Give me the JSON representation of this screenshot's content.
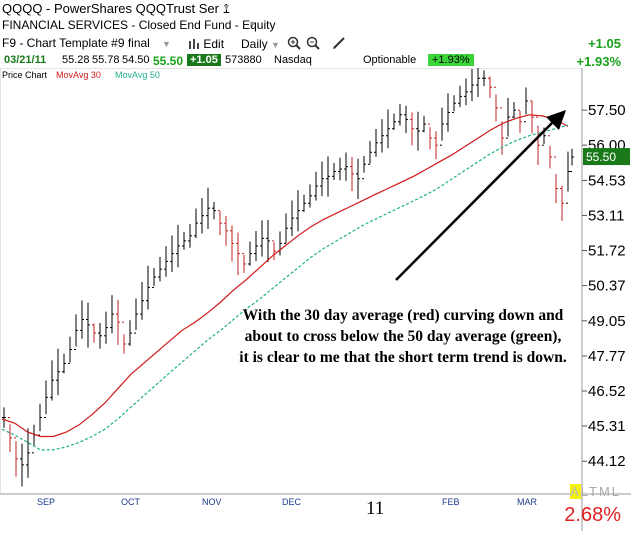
{
  "header": {
    "symbol": "QQQQ - PowerShares QQQTrust Ser 1",
    "sector": "FINANCIAL SERVICES - Closed End Fund - Equity",
    "template": "F9 - Chart Template #9 final",
    "edit_label": "Edit",
    "period_label": "Daily",
    "change": "+1.05",
    "change_pct": "+1.93%"
  },
  "quote": {
    "date": "03/21/11",
    "open": "55.28",
    "high": "55.78",
    "low": "54.50",
    "last": "55.50",
    "change": "+1.05",
    "volume": "573880",
    "exchange": "Nasdaq",
    "optionable": "Optionable",
    "change_pct": "+1.93%"
  },
  "legend": {
    "price": "Price Chart",
    "ma30": "MovAvg 30",
    "ma50": "MovAvg 50"
  },
  "colors": {
    "price_bar": "#000000",
    "down_bar": "#c02020",
    "ma30": "#d01818",
    "ma50": "#20b08a",
    "positive": "#1aa01a",
    "last_box": "#1a7a1a"
  },
  "chart_data": {
    "type": "line",
    "y_ticks": [
      "57.50",
      "56.00",
      "54.53",
      "53.11",
      "51.72",
      "50.37",
      "49.05",
      "47.77",
      "46.52",
      "45.31",
      "44.12"
    ],
    "x_labels": [
      "SEP",
      "OCT",
      "NOV",
      "DEC",
      "11",
      "FEB",
      "MAR"
    ],
    "last_price": "55.50",
    "ylim": [
      43.5,
      59.0
    ],
    "log_scale": true,
    "series": [
      {
        "name": "MovAvg 30",
        "values": [
          45.55,
          45.4,
          45.1,
          44.95,
          44.95,
          45.1,
          45.35,
          45.7,
          46.1,
          46.6,
          47.1,
          47.5,
          47.9,
          48.3,
          48.7,
          49.0,
          49.35,
          49.75,
          50.2,
          50.6,
          51.05,
          51.5,
          51.9,
          52.3,
          52.65,
          52.95,
          53.2,
          53.45,
          53.7,
          53.95,
          54.2,
          54.45,
          54.7,
          55.0,
          55.3,
          55.6,
          55.95,
          56.3,
          56.65,
          56.95,
          57.15,
          57.3,
          57.25,
          57.1,
          56.8
        ]
      },
      {
        "name": "MovAvg 50",
        "values": [
          45.2,
          45.0,
          44.75,
          44.5,
          44.5,
          44.6,
          44.75,
          44.95,
          45.2,
          45.55,
          45.95,
          46.35,
          46.75,
          47.15,
          47.55,
          47.95,
          48.35,
          48.7,
          49.1,
          49.5,
          49.85,
          50.25,
          50.65,
          51.05,
          51.45,
          51.8,
          52.1,
          52.4,
          52.7,
          52.95,
          53.2,
          53.45,
          53.7,
          53.95,
          54.25,
          54.6,
          54.95,
          55.3,
          55.65,
          55.95,
          56.2,
          56.4,
          56.55,
          56.7,
          56.85
        ]
      }
    ]
  },
  "annotation": "With the 30 day average (red) curving down and about to cross below the 50 day average (green), it is clear to me that the short term trend is down.",
  "footer": {
    "view_modes": "ALTML",
    "active_mode": "A",
    "rest_modes": "LTML",
    "change_pct": "2.68%"
  }
}
